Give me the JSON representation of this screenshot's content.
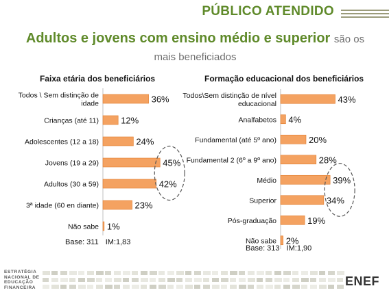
{
  "header": {
    "title": "PÚBLICO ATENDIDO",
    "headline_main": "Adultos e jovens com ensino médio e superior",
    "headline_suffix": "são os mais beneficiados"
  },
  "colors": {
    "accent_green": "#5f8a2a",
    "bar_fill": "#f4a261",
    "bar_edge": "#e07b2a"
  },
  "footer": {
    "org_lines": [
      "ESTRATÉGIA",
      "NACIONAL DE",
      "EDUCAÇÃO",
      "FINANCEIRA"
    ],
    "logo": "ENEF"
  },
  "chart_data": [
    {
      "type": "bar",
      "orientation": "horizontal",
      "title": "Faixa etária dos beneficiários",
      "categories": [
        [
          "Todos \\ Sem distinção de",
          "idade"
        ],
        [
          "Crianças (até 11)"
        ],
        [
          "Adolescentes (12 a 18)"
        ],
        [
          "Jovens (19 a 29)"
        ],
        [
          "Adultos (30 a 59)"
        ],
        [
          "3ª idade (60 en diante)"
        ],
        [
          "Não sabe"
        ]
      ],
      "values": [
        36,
        12,
        24,
        45,
        42,
        23,
        1
      ],
      "value_labels": [
        "36%",
        "12%",
        "24%",
        "45%",
        "42%",
        "23%",
        "1%"
      ],
      "unit": "%",
      "highlight": [
        3,
        4
      ],
      "base_text": "Base: 311",
      "im_text": "IM:1,83"
    },
    {
      "type": "bar",
      "orientation": "horizontal",
      "title": "Formação educacional dos beneficiários",
      "categories": [
        [
          "Todos\\Sem distinção de nível",
          "educacional"
        ],
        [
          "Analfabetos"
        ],
        [
          "Fundamental (até 5º ano)"
        ],
        [
          "Fundamental 2 (6º a 9º ano)"
        ],
        [
          "Médio"
        ],
        [
          "Superior"
        ],
        [
          "Pós-graduação"
        ],
        [
          "Não sabe"
        ]
      ],
      "values": [
        43,
        4,
        20,
        28,
        39,
        34,
        19,
        2
      ],
      "value_labels": [
        "43%",
        "4%",
        "20%",
        "28%",
        "39%",
        "34%",
        "19%",
        "2%"
      ],
      "unit": "%",
      "highlight": [
        4,
        5
      ],
      "base_text": "Base: 313",
      "im_text": "IM:1,90"
    }
  ]
}
